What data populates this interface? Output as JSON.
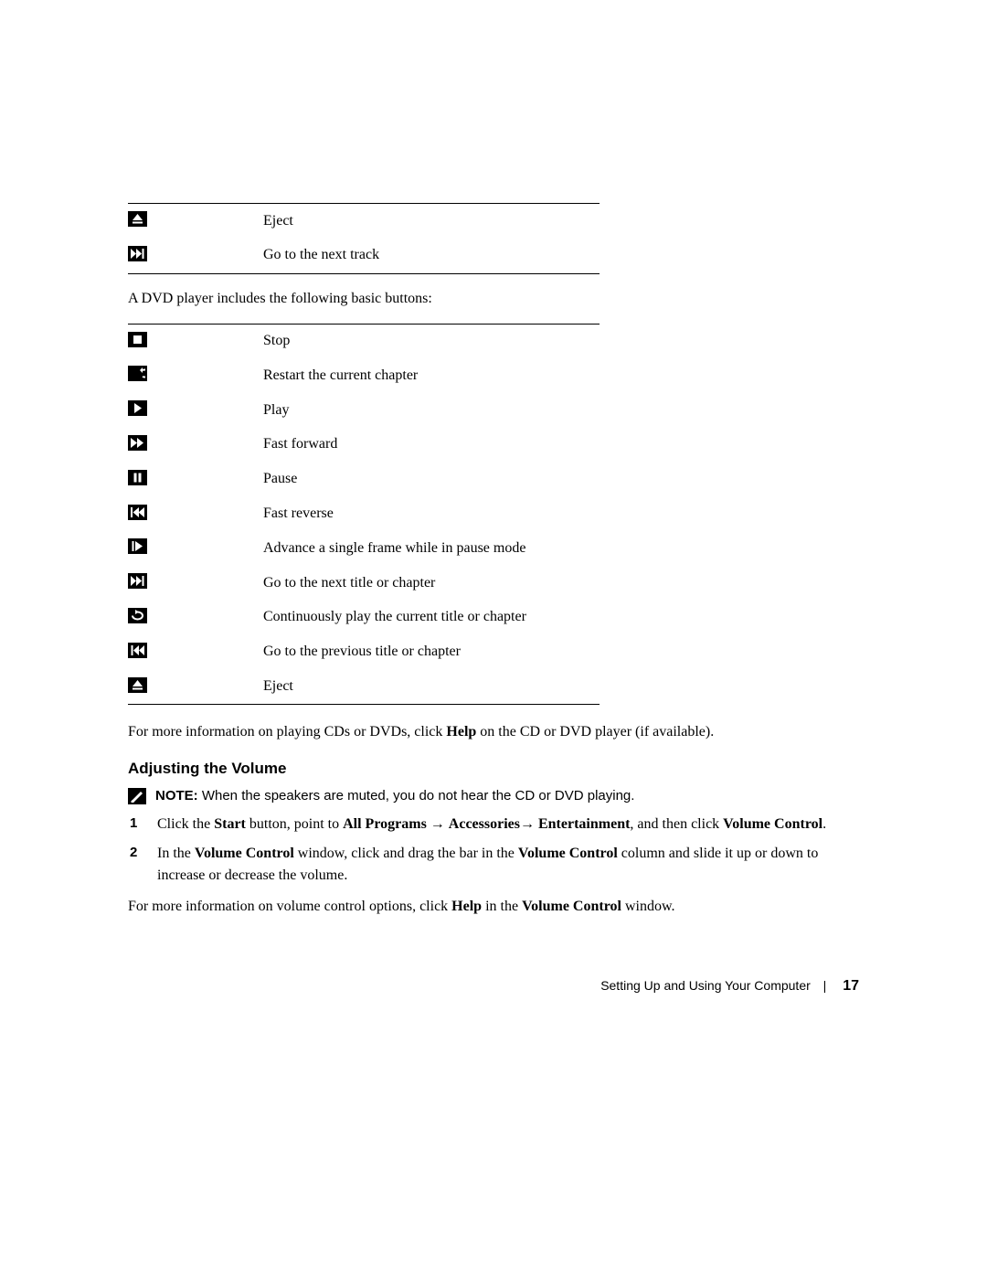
{
  "table1": {
    "rows": [
      {
        "icon": "eject",
        "label": "Eject"
      },
      {
        "icon": "next-track",
        "label": "Go to the next track"
      }
    ]
  },
  "intro_text": "A DVD player includes the following basic buttons:",
  "table2": {
    "rows": [
      {
        "icon": "stop",
        "label": "Stop"
      },
      {
        "icon": "restart",
        "label": "Restart the current chapter"
      },
      {
        "icon": "play",
        "label": "Play"
      },
      {
        "icon": "fast-forward",
        "label": "Fast forward"
      },
      {
        "icon": "pause",
        "label": "Pause"
      },
      {
        "icon": "fast-reverse",
        "label": "Fast reverse"
      },
      {
        "icon": "frame-advance",
        "label": "Advance a single frame while in pause mode"
      },
      {
        "icon": "next-title",
        "label": "Go to the next title or chapter"
      },
      {
        "icon": "repeat",
        "label": "Continuously play the current title or chapter"
      },
      {
        "icon": "prev-title",
        "label": "Go to the previous title or chapter"
      },
      {
        "icon": "eject",
        "label": "Eject"
      }
    ]
  },
  "more_info_text": {
    "prefix": "For more information on playing CDs or DVDs, click ",
    "bold": "Help",
    "suffix": " on the CD or DVD player (if available)."
  },
  "section_heading": "Adjusting the Volume",
  "note": {
    "label": "NOTE:",
    "text": " When the speakers are muted, you do not hear the CD or DVD playing."
  },
  "steps": [
    {
      "parts": [
        {
          "t": "Click the "
        },
        {
          "t": "Start",
          "b": true
        },
        {
          "t": " button, point to "
        },
        {
          "t": "All Programs ",
          "b": true
        },
        {
          "t": "→ "
        },
        {
          "t": "Accessories",
          "b": true
        },
        {
          "t": "→ "
        },
        {
          "t": "Entertainment",
          "b": true
        },
        {
          "t": ", and then click "
        },
        {
          "t": "Volume Control",
          "b": true
        },
        {
          "t": "."
        }
      ]
    },
    {
      "parts": [
        {
          "t": "In the "
        },
        {
          "t": "Volume Control",
          "b": true
        },
        {
          "t": " window, click and drag the bar in the "
        },
        {
          "t": "Volume Control",
          "b": true
        },
        {
          "t": " column and slide it up or down to increase or decrease the volume."
        }
      ]
    }
  ],
  "closing_text": {
    "prefix": "For more information on volume control options, click ",
    "bold1": "Help",
    "mid": " in the ",
    "bold2": "Volume Control",
    "suffix": " window."
  },
  "footer": {
    "section": "Setting Up and Using Your Computer",
    "page": "17"
  },
  "colors": {
    "text": "#000000",
    "background": "#ffffff",
    "icon_bg": "#000000",
    "icon_fg": "#ffffff"
  },
  "icons": {
    "eject": "eject",
    "next-track": "next",
    "stop": "stop",
    "restart": "restart",
    "play": "play",
    "fast-forward": "ffwd",
    "pause": "pause",
    "fast-reverse": "frev",
    "frame-advance": "frame",
    "next-title": "next",
    "repeat": "repeat",
    "prev-title": "prev"
  }
}
